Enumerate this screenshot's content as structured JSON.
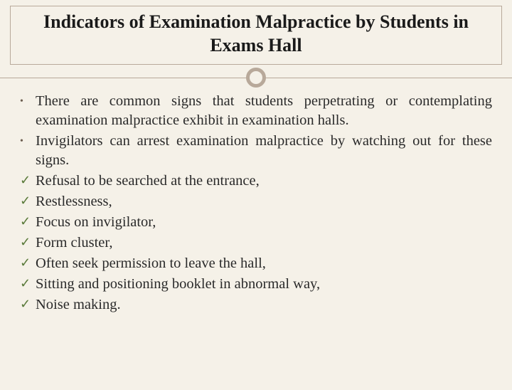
{
  "title": "Indicators of Examination Malpractice by Students in Exams Hall",
  "colors": {
    "background": "#f5f1e8",
    "border": "#b8a99a",
    "text": "#2a2a2a",
    "title_text": "#1a1a1a",
    "bullet_marker": "#6b5d4f",
    "check_marker": "#5a7a3a"
  },
  "typography": {
    "title_fontsize": 26,
    "body_fontsize": 20.5,
    "font_family": "Georgia / serif"
  },
  "bullets": [
    "There are common signs that students perpetrating or contemplating examination malpractice exhibit in examination halls.",
    "Invigilators can arrest examination malpractice by watching out for these signs."
  ],
  "checks": [
    "Refusal to be searched at the entrance,",
    "Restlessness,",
    "Focus on invigilator,",
    "Form cluster,",
    "Often seek permission to leave the hall,",
    "Sitting and positioning booklet in abnormal way,",
    "Noise making."
  ],
  "markers": {
    "bullet": "•",
    "check": "✓"
  }
}
